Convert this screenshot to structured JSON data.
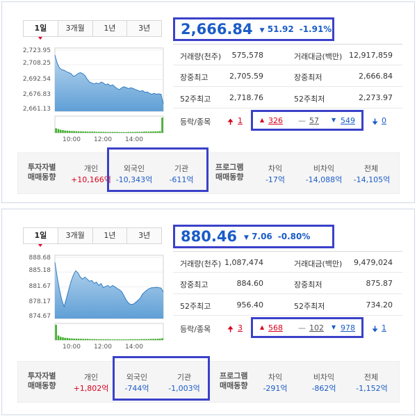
{
  "colors": {
    "accent": "#1a5cc8",
    "rise": "#d8001c",
    "highlight": "#3a41c9"
  },
  "panels": [
    {
      "tabs": [
        "1일",
        "3개월",
        "1년",
        "3년"
      ],
      "active_tab": 0,
      "headline": {
        "price": "2,666.84",
        "change_arrow": "▼",
        "change": "51.92",
        "percent": "-1.91%"
      },
      "chart": {
        "yticks": [
          "2,723.95",
          "2,708.25",
          "2,692.54",
          "2,676.83",
          "2,661.13"
        ],
        "xticks": [
          "10:00",
          "12:00",
          "14:00"
        ],
        "ylim": [
          2661.13,
          2723.95
        ],
        "line": [
          2718.7,
          2710,
          2705,
          2703,
          2702.5,
          2701,
          2700,
          2699,
          2696,
          2697,
          2699,
          2700,
          2699,
          2697,
          2693,
          2690,
          2689,
          2688,
          2689,
          2688,
          2690,
          2689,
          2687,
          2688,
          2686,
          2687,
          2685,
          2683,
          2682,
          2684,
          2685,
          2684,
          2683,
          2684,
          2683,
          2682,
          2681,
          2680,
          2681,
          2679,
          2679.5,
          2678,
          2677,
          2678,
          2677,
          2677.5,
          2677,
          2666.8
        ],
        "volume": [
          0.3,
          0.25,
          0.2,
          0.18,
          0.15,
          0.14,
          0.13,
          0.12,
          0.12,
          0.11,
          0.1,
          0.1,
          0.09,
          0.09,
          0.08,
          0.08,
          0.08,
          0.08,
          0.07,
          0.07,
          0.07,
          0.07,
          0.06,
          0.06,
          0.06,
          0.06,
          0.06,
          0.06,
          0.05,
          0.05,
          0.05,
          0.05,
          0.06,
          0.06,
          0.06,
          0.06,
          0.07,
          0.07,
          0.07,
          0.08,
          0.08,
          0.08,
          0.09,
          0.09,
          0.1,
          0.1,
          0.12,
          1.0
        ]
      },
      "stats": [
        {
          "l1": "거래량(천주)",
          "v1": "575,578",
          "l2": "거래대금(백만)",
          "v2": "12,917,859"
        },
        {
          "l1": "장중최고",
          "v1": "2,705.59",
          "l2": "장중최저",
          "v2": "2,666.84"
        },
        {
          "l1": "52주최고",
          "v1": "2,718.76",
          "l2": "52주최저",
          "v2": "2,273.97"
        }
      ],
      "updown": {
        "label": "등락/종목",
        "upper_limit": "1",
        "rise": "326",
        "flat": "57",
        "fall": "549",
        "lower_limit": "0"
      },
      "investors": {
        "title_line1": "투자자별",
        "title_line2": "매매동향",
        "individual_label": "개인",
        "individual_value": "+10,166억",
        "foreign_label": "외국인",
        "foreign_value": "-10,343억",
        "institution_label": "기관",
        "institution_value": "-611억",
        "program_line1": "프로그램",
        "program_line2": "매매동향",
        "arbitrage_label": "차익",
        "arbitrage_value": "-17억",
        "nonarb_label": "비차익",
        "nonarb_value": "-14,088억",
        "total_label": "전체",
        "total_value": "-14,105억"
      }
    },
    {
      "tabs": [
        "1일",
        "3개월",
        "1년",
        "3년"
      ],
      "active_tab": 0,
      "headline": {
        "price": "880.46",
        "change_arrow": "▼",
        "change": "7.06",
        "percent": "-0.80%"
      },
      "chart": {
        "yticks": [
          "888.68",
          "885.18",
          "881.67",
          "878.17",
          "874.67"
        ],
        "xticks": [
          "10:00",
          "12:00",
          "14:00"
        ],
        "ylim": [
          874.67,
          888.68
        ],
        "line": [
          887.5,
          884,
          881,
          878.5,
          877,
          879,
          881,
          883,
          884.5,
          885.5,
          885,
          884,
          883.5,
          884,
          883.5,
          883,
          883.2,
          882.5,
          882.8,
          882,
          882.5,
          881.5,
          881.8,
          882,
          881.6,
          882,
          881.7,
          881.3,
          881,
          880.5,
          879.5,
          878.5,
          877.8,
          877.5,
          877.6,
          878,
          878.5,
          879,
          880,
          880.5,
          881,
          881.3,
          881.5,
          881.5,
          881.6,
          881.5,
          881.4,
          880.5
        ],
        "volume": [
          1.0,
          0.3,
          0.22,
          0.18,
          0.15,
          0.14,
          0.12,
          0.11,
          0.1,
          0.1,
          0.09,
          0.09,
          0.08,
          0.08,
          0.08,
          0.07,
          0.07,
          0.07,
          0.06,
          0.06,
          0.06,
          0.06,
          0.06,
          0.06,
          0.05,
          0.05,
          0.05,
          0.05,
          0.05,
          0.05,
          0.05,
          0.05,
          0.05,
          0.06,
          0.06,
          0.06,
          0.06,
          0.06,
          0.07,
          0.07,
          0.07,
          0.07,
          0.08,
          0.08,
          0.08,
          0.09,
          0.1,
          0.12
        ]
      },
      "stats": [
        {
          "l1": "거래량(천주)",
          "v1": "1,087,474",
          "l2": "거래대금(백만)",
          "v2": "9,479,024"
        },
        {
          "l1": "장중최고",
          "v1": "884.60",
          "l2": "장중최저",
          "v2": "875.87"
        },
        {
          "l1": "52주최고",
          "v1": "956.40",
          "l2": "52주최저",
          "v2": "734.20"
        }
      ],
      "updown": {
        "label": "등락/종목",
        "upper_limit": "3",
        "rise": "568",
        "flat": "102",
        "fall": "978",
        "lower_limit": "1"
      },
      "investors": {
        "title_line1": "투자자별",
        "title_line2": "매매동향",
        "individual_label": "개인",
        "individual_value": "+1,802억",
        "foreign_label": "외국인",
        "foreign_value": "-744억",
        "institution_label": "기관",
        "institution_value": "-1,003억",
        "program_line1": "프로그램",
        "program_line2": "매매동향",
        "arbitrage_label": "차익",
        "arbitrage_value": "-291억",
        "nonarb_label": "비차익",
        "nonarb_value": "-862억",
        "total_label": "전체",
        "total_value": "-1,152억"
      }
    }
  ]
}
